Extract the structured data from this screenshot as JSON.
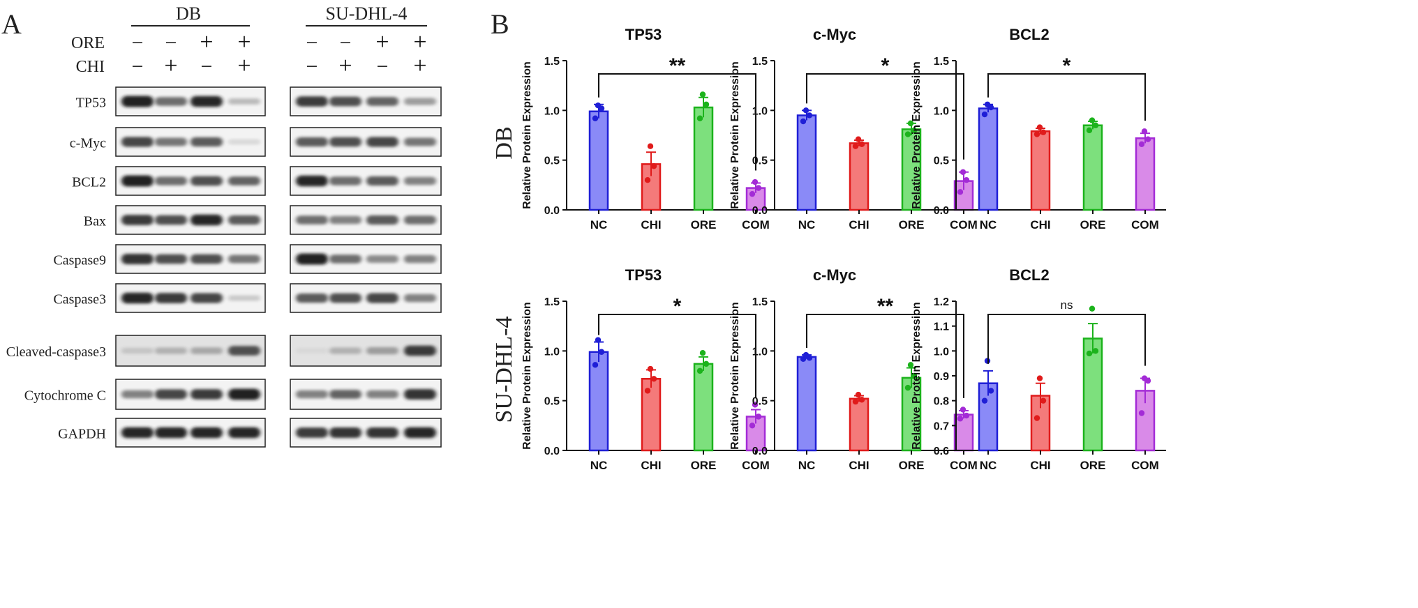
{
  "panel_a": {
    "letter": "A",
    "cell_lines": [
      "DB",
      "SU-DHL-4"
    ],
    "treatment_rows": [
      {
        "label": "ORE",
        "signs": [
          "−",
          "−",
          "+",
          "+"
        ]
      },
      {
        "label": "CHI",
        "signs": [
          "−",
          "+",
          "−",
          "+"
        ]
      }
    ],
    "blots": [
      {
        "label": "TP53",
        "db": [
          1.0,
          0.6,
          0.95,
          0.2
        ],
        "su": [
          0.85,
          0.75,
          0.65,
          0.35
        ]
      },
      {
        "label": "c-Myc",
        "db": [
          0.8,
          0.55,
          0.7,
          0.05
        ],
        "su": [
          0.7,
          0.75,
          0.8,
          0.55
        ]
      },
      {
        "label": "BCL2",
        "db": [
          1.0,
          0.6,
          0.75,
          0.65
        ],
        "su": [
          0.95,
          0.6,
          0.7,
          0.5
        ]
      },
      {
        "label": "Bax",
        "db": [
          0.85,
          0.75,
          0.95,
          0.7
        ],
        "su": [
          0.6,
          0.5,
          0.7,
          0.6
        ]
      },
      {
        "label": "Caspase9",
        "db": [
          0.9,
          0.75,
          0.75,
          0.55
        ],
        "su": [
          1.0,
          0.6,
          0.45,
          0.5
        ]
      },
      {
        "label": "Caspase3",
        "db": [
          0.95,
          0.85,
          0.8,
          0.12
        ],
        "su": [
          0.7,
          0.75,
          0.8,
          0.5
        ]
      },
      {
        "label": "Cleaved-caspase3",
        "db": [
          0.15,
          0.25,
          0.3,
          0.75
        ],
        "su": [
          0.05,
          0.25,
          0.35,
          0.85
        ]
      },
      {
        "label": "Cytochrome C",
        "db": [
          0.5,
          0.8,
          0.85,
          1.0
        ],
        "su": [
          0.5,
          0.65,
          0.5,
          0.9
        ]
      },
      {
        "label": "GAPDH",
        "db": [
          0.95,
          0.95,
          0.95,
          0.95
        ],
        "su": [
          0.85,
          0.9,
          0.9,
          0.95
        ]
      }
    ]
  },
  "panel_b": {
    "letter": "B",
    "row_labels": [
      "DB",
      "SU-DHL-4"
    ],
    "colors": {
      "NC": {
        "fill": "#8a8af7",
        "stroke": "#1f1fd6",
        "dot": "#1f1fd6"
      },
      "CHI": {
        "fill": "#f47a7a",
        "stroke": "#e01b1b",
        "dot": "#e01b1b"
      },
      "ORE": {
        "fill": "#7de07d",
        "stroke": "#1cb31c",
        "dot": "#1cb31c"
      },
      "COM": {
        "fill": "#d98ae8",
        "stroke": "#a32bd6",
        "dot": "#a32bd6"
      }
    }
  },
  "chart_data": [
    {
      "type": "bar",
      "title": "TP53",
      "cell_line": "DB",
      "ylabel": "Relative Protein Expression",
      "xlabel": "",
      "categories": [
        "NC",
        "CHI",
        "ORE",
        "COM"
      ],
      "values": [
        0.99,
        0.46,
        1.03,
        0.22
      ],
      "errors": [
        0.07,
        0.12,
        0.1,
        0.05
      ],
      "points": [
        [
          0.92,
          1.02,
          1.05
        ],
        [
          0.3,
          0.44,
          0.64
        ],
        [
          0.92,
          1.06,
          1.16
        ],
        [
          0.16,
          0.22,
          0.28
        ]
      ],
      "ylim": [
        0,
        1.5
      ],
      "yticks": [
        "0.0",
        "0.5",
        "1.0",
        "1.5"
      ],
      "significance": "**"
    },
    {
      "type": "bar",
      "title": "c-Myc",
      "cell_line": "DB",
      "ylabel": "Relative Protein Expression",
      "xlabel": "",
      "categories": [
        "NC",
        "CHI",
        "ORE",
        "COM"
      ],
      "values": [
        0.95,
        0.67,
        0.81,
        0.29
      ],
      "errors": [
        0.05,
        0.03,
        0.06,
        0.09
      ],
      "points": [
        [
          0.89,
          0.95,
          1.0
        ],
        [
          0.64,
          0.66,
          0.71
        ],
        [
          0.76,
          0.8,
          0.87
        ],
        [
          0.18,
          0.3,
          0.38
        ]
      ],
      "ylim": [
        0,
        1.5
      ],
      "yticks": [
        "0.0",
        "0.5",
        "1.0",
        "1.5"
      ],
      "significance": "*"
    },
    {
      "type": "bar",
      "title": "BCL2",
      "cell_line": "DB",
      "ylabel": "Relative Protein Expression",
      "xlabel": "",
      "categories": [
        "NC",
        "CHI",
        "ORE",
        "COM"
      ],
      "values": [
        1.02,
        0.79,
        0.85,
        0.72
      ],
      "errors": [
        0.04,
        0.03,
        0.04,
        0.05
      ],
      "points": [
        [
          0.96,
          1.03,
          1.06
        ],
        [
          0.76,
          0.78,
          0.83
        ],
        [
          0.8,
          0.85,
          0.9
        ],
        [
          0.66,
          0.71,
          0.79
        ]
      ],
      "ylim": [
        0,
        1.5
      ],
      "yticks": [
        "0.0",
        "0.5",
        "1.0",
        "1.5"
      ],
      "significance": "*"
    },
    {
      "type": "bar",
      "title": "TP53",
      "cell_line": "SU-DHL-4",
      "ylabel": "Relative Protein Expression",
      "xlabel": "",
      "categories": [
        "NC",
        "CHI",
        "ORE",
        "COM"
      ],
      "values": [
        0.99,
        0.72,
        0.87,
        0.34
      ],
      "errors": [
        0.1,
        0.09,
        0.07,
        0.07
      ],
      "points": [
        [
          0.86,
          0.99,
          1.11
        ],
        [
          0.6,
          0.72,
          0.82
        ],
        [
          0.8,
          0.87,
          0.98
        ],
        [
          0.25,
          0.34,
          0.46
        ]
      ],
      "ylim": [
        0,
        1.5
      ],
      "yticks": [
        "0.0",
        "0.5",
        "1.0",
        "1.5"
      ],
      "significance": "*"
    },
    {
      "type": "bar",
      "title": "c-Myc",
      "cell_line": "SU-DHL-4",
      "ylabel": "Relative Protein Expression",
      "xlabel": "",
      "categories": [
        "NC",
        "CHI",
        "ORE",
        "COM"
      ],
      "values": [
        0.94,
        0.52,
        0.73,
        0.36
      ],
      "errors": [
        0.02,
        0.03,
        0.1,
        0.04
      ],
      "points": [
        [
          0.92,
          0.93,
          0.96
        ],
        [
          0.49,
          0.51,
          0.56
        ],
        [
          0.63,
          0.75,
          0.86
        ],
        [
          0.32,
          0.35,
          0.41
        ]
      ],
      "ylim": [
        0,
        1.5
      ],
      "yticks": [
        "0.0",
        "0.5",
        "1.0",
        "1.5"
      ],
      "significance": "**"
    },
    {
      "type": "bar",
      "title": "BCL2",
      "cell_line": "SU-DHL-4",
      "ylabel": "Relative Protein Expression",
      "xlabel": "",
      "categories": [
        "NC",
        "CHI",
        "ORE",
        "COM"
      ],
      "values": [
        0.87,
        0.82,
        1.05,
        0.84
      ],
      "errors": [
        0.05,
        0.05,
        0.06,
        0.05
      ],
      "points": [
        [
          0.8,
          0.84,
          0.96
        ],
        [
          0.73,
          0.8,
          0.89
        ],
        [
          0.99,
          1.0,
          1.17
        ],
        [
          0.75,
          0.88,
          0.89
        ]
      ],
      "ylim": [
        0.6,
        1.2
      ],
      "yticks": [
        "0.6",
        "0.7",
        "0.8",
        "0.9",
        "1.0",
        "1.1",
        "1.2"
      ],
      "significance": "ns"
    }
  ]
}
